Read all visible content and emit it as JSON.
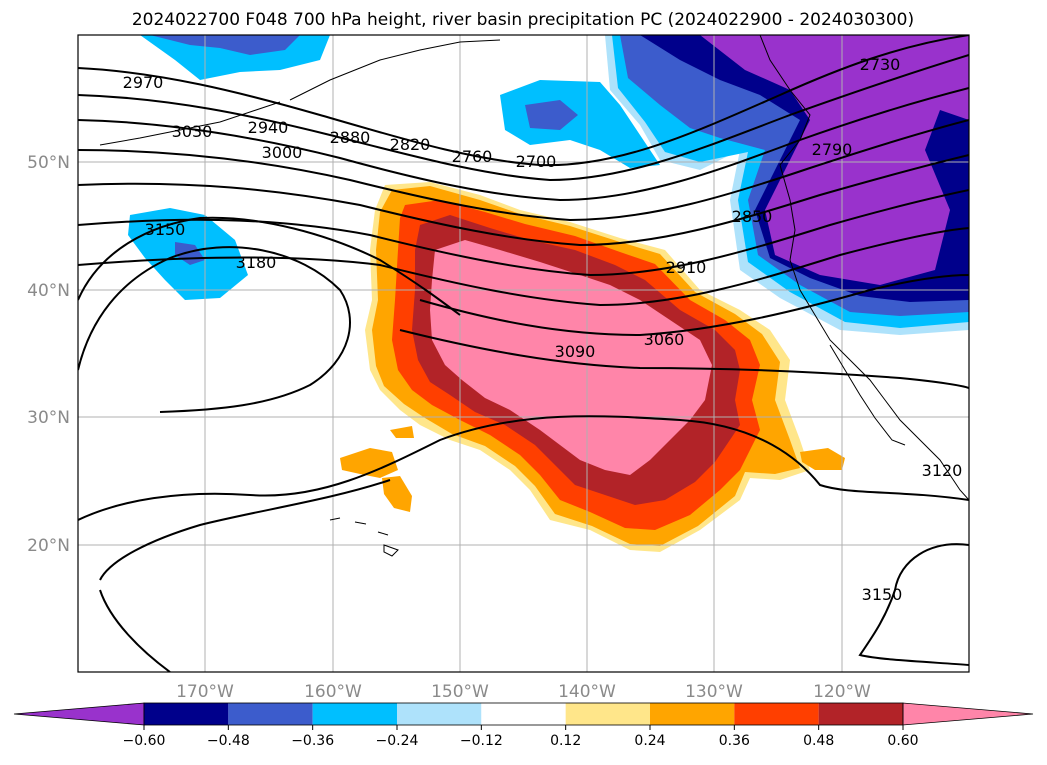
{
  "title": "2024022700 F048 700 hPa height, river basin precipitation PC (2024022900 - 2024030300)",
  "map": {
    "lat_labels": [
      "50°N",
      "40°N",
      "30°N",
      "20°N"
    ],
    "lon_labels": [
      "170°W",
      "160°W",
      "150°W",
      "140°W",
      "130°W",
      "120°W"
    ],
    "height_contour_labels": [
      "2730",
      "2790",
      "2850",
      "2700",
      "2760",
      "2820",
      "2880",
      "2940",
      "2970",
      "3030",
      "3000",
      "2910",
      "3060",
      "3090",
      "3150",
      "3180",
      "3120",
      "3150"
    ],
    "fill_colors": {
      "pc_pos_high": "#ff85a9",
      "pc_pos_048": "#b22328",
      "pc_pos_036": "#ff3f00",
      "pc_pos_024": "#ffa500",
      "pc_pos_012": "#ffe68a",
      "pc_neg_012": "#aee2fb",
      "pc_neg_024": "#00bfff",
      "pc_neg_036": "#3c5ccc",
      "pc_neg_048": "#00008b",
      "pc_neg_high": "#9932cc"
    }
  },
  "colorbar": {
    "tick_labels": [
      "−0.60",
      "−0.48",
      "−0.36",
      "−0.24",
      "−0.12",
      "0.12",
      "0.24",
      "0.36",
      "0.48",
      "0.60"
    ],
    "segment_colors": [
      "#9932cc",
      "#00008b",
      "#3c5ccc",
      "#00bfff",
      "#aee2fb",
      "#ffffff",
      "#ffe68a",
      "#ffa500",
      "#ff3f00",
      "#b22328",
      "#ff85a9"
    ]
  }
}
